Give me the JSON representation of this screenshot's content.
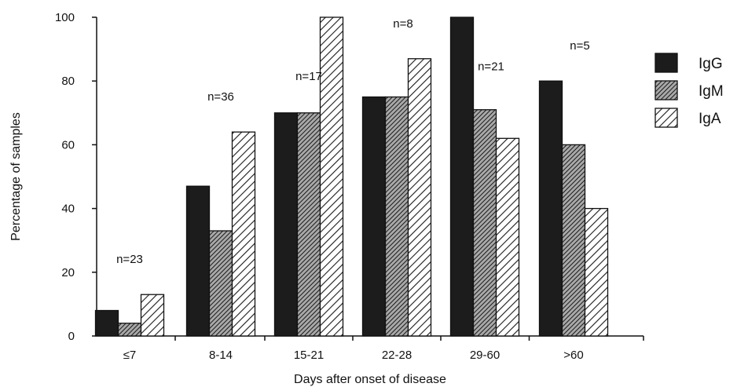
{
  "chart_data": {
    "type": "bar",
    "title": "",
    "xlabel": "Days after onset of disease",
    "ylabel": "Percentage of samples",
    "ylim": [
      0,
      100
    ],
    "yticks": [
      0,
      20,
      40,
      60,
      80,
      100
    ],
    "categories": [
      "≤7",
      "8-14",
      "15-21",
      "22-28",
      "29-60",
      ">60"
    ],
    "sample_sizes": [
      "n=23",
      "n=36",
      "n=17",
      "n=8",
      "n=21",
      "n=5"
    ],
    "series": [
      {
        "name": "IgG",
        "values": [
          8,
          47,
          70,
          75,
          100,
          80
        ],
        "fill": "solid",
        "color": "#1c1c1c"
      },
      {
        "name": "IgM",
        "values": [
          4,
          33,
          70,
          75,
          71,
          60
        ],
        "fill": "dense-hatch",
        "color": "#555555"
      },
      {
        "name": "IgA",
        "values": [
          13,
          64,
          100,
          87,
          62,
          40
        ],
        "fill": "open-hatch",
        "color": "#ffffff"
      }
    ],
    "legend_position": "right",
    "grid": false
  }
}
